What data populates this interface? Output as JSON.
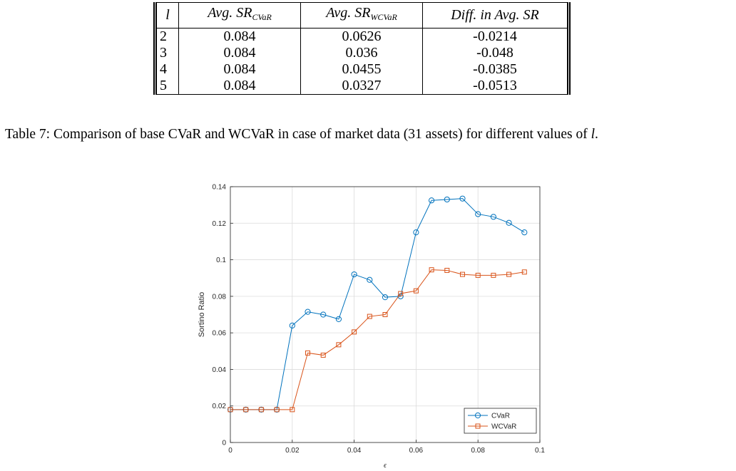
{
  "table": {
    "headers": {
      "l": "l",
      "avg_cvar": "Avg. SR",
      "avg_cvar_sub": "CVaR",
      "avg_wcvar": "Avg. SR",
      "avg_wcvar_sub": "WCVaR",
      "diff": "Diff. in Avg. SR"
    },
    "rows": [
      {
        "l": "2",
        "cvar": "0.084",
        "wcvar": "0.0626",
        "diff": "-0.0214"
      },
      {
        "l": "3",
        "cvar": "0.084",
        "wcvar": "0.036",
        "diff": "-0.048"
      },
      {
        "l": "4",
        "cvar": "0.084",
        "wcvar": "0.0455",
        "diff": "-0.0385"
      },
      {
        "l": "5",
        "cvar": "0.084",
        "wcvar": "0.0327",
        "diff": "-0.0513"
      }
    ]
  },
  "caption": {
    "label": "Table 7:",
    "text": " Comparison of base CVaR and WCVaR in case of market data (31 assets) for different values of ",
    "var": "l",
    "end": "."
  },
  "chart_data": {
    "type": "line",
    "xlabel": "ϵ",
    "ylabel": "Sortino Ratio",
    "xlim": [
      0,
      0.1
    ],
    "ylim": [
      0,
      0.14
    ],
    "xticks": [
      0,
      0.02,
      0.04,
      0.06,
      0.08,
      0.1
    ],
    "xtick_labels": [
      "0",
      "0.02",
      "0.04",
      "0.06",
      "0.08",
      "0.1"
    ],
    "yticks": [
      0,
      0.02,
      0.04,
      0.06,
      0.08,
      0.1,
      0.12,
      0.14
    ],
    "ytick_labels": [
      "0",
      "0.02",
      "0.04",
      "0.06",
      "0.08",
      "0.1",
      "0.12",
      "0.14"
    ],
    "grid": true,
    "legend_position": "bottom-right",
    "x": [
      0,
      0.005,
      0.01,
      0.015,
      0.02,
      0.025,
      0.03,
      0.035,
      0.04,
      0.045,
      0.05,
      0.055,
      0.06,
      0.065,
      0.07,
      0.075,
      0.08,
      0.085,
      0.09,
      0.095
    ],
    "series": [
      {
        "name": "CVaR",
        "color": "#0072BD",
        "marker": "circle",
        "values": [
          0.018,
          0.018,
          0.018,
          0.018,
          0.064,
          0.0715,
          0.07,
          0.0675,
          0.092,
          0.089,
          0.0795,
          0.08,
          0.115,
          0.1325,
          0.133,
          0.1335,
          0.125,
          0.1235,
          0.1202,
          0.115
        ]
      },
      {
        "name": "WCVaR",
        "color": "#D95319",
        "marker": "square",
        "values": [
          0.018,
          0.018,
          0.018,
          0.018,
          0.018,
          0.049,
          0.0478,
          0.0535,
          0.0605,
          0.069,
          0.07,
          0.0815,
          0.083,
          0.0945,
          0.0942,
          0.092,
          0.0915,
          0.0915,
          0.092,
          0.0933
        ]
      }
    ]
  }
}
